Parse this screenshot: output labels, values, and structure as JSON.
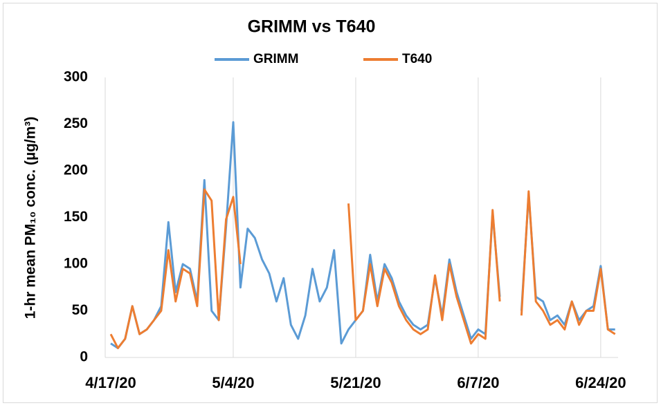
{
  "chart_data": {
    "type": "line",
    "title": "GRIMM vs T640",
    "y_label": "1-hr mean PM₁₀ conc. (µg/m³)",
    "x": [
      "4/17/20",
      "4/18/20",
      "4/19/20",
      "4/20/20",
      "4/21/20",
      "4/22/20",
      "4/23/20",
      "4/24/20",
      "4/25/20",
      "4/26/20",
      "4/27/20",
      "4/28/20",
      "4/29/20",
      "4/30/20",
      "5/1/20",
      "5/2/20",
      "5/3/20",
      "5/4/20",
      "5/5/20",
      "5/6/20",
      "5/7/20",
      "5/8/20",
      "5/9/20",
      "5/10/20",
      "5/11/20",
      "5/12/20",
      "5/13/20",
      "5/14/20",
      "5/15/20",
      "5/16/20",
      "5/17/20",
      "5/18/20",
      "5/19/20",
      "5/20/20",
      "5/21/20",
      "5/22/20",
      "5/23/20",
      "5/24/20",
      "5/25/20",
      "5/26/20",
      "5/27/20",
      "5/28/20",
      "5/29/20",
      "5/30/20",
      "5/31/20",
      "6/1/20",
      "6/2/20",
      "6/3/20",
      "6/4/20",
      "6/5/20",
      "6/6/20",
      "6/7/20",
      "6/8/20",
      "6/9/20",
      "6/10/20",
      "6/11/20",
      "6/12/20",
      "6/13/20",
      "6/14/20",
      "6/15/20",
      "6/16/20",
      "6/17/20",
      "6/18/20",
      "6/19/20",
      "6/20/20",
      "6/21/20",
      "6/22/20",
      "6/23/20",
      "6/24/20",
      "6/25/20",
      "6/26/20"
    ],
    "xticks": [
      "4/17/20",
      "5/4/20",
      "5/21/20",
      "6/7/20",
      "6/24/20"
    ],
    "series": [
      {
        "name": "GRIMM",
        "color": "#5b9bd5",
        "values": [
          15,
          10,
          20,
          55,
          25,
          30,
          40,
          55,
          145,
          70,
          100,
          95,
          60,
          190,
          50,
          40,
          140,
          252,
          75,
          138,
          128,
          105,
          90,
          60,
          85,
          35,
          20,
          45,
          95,
          60,
          75,
          115,
          15,
          30,
          40,
          50,
          110,
          60,
          100,
          85,
          60,
          45,
          35,
          30,
          35,
          85,
          45,
          105,
          70,
          45,
          20,
          30,
          25,
          155,
          65,
          null,
          null,
          50,
          175,
          65,
          60,
          40,
          45,
          35,
          60,
          40,
          50,
          55,
          98,
          30,
          30
        ]
      },
      {
        "name": "T640",
        "color": "#ed7d31",
        "values": [
          25,
          10,
          20,
          55,
          25,
          30,
          40,
          50,
          115,
          60,
          95,
          90,
          55,
          180,
          168,
          40,
          148,
          172,
          100,
          null,
          null,
          null,
          null,
          null,
          null,
          null,
          null,
          null,
          null,
          null,
          null,
          null,
          null,
          165,
          40,
          50,
          100,
          55,
          95,
          80,
          55,
          40,
          30,
          25,
          30,
          88,
          40,
          100,
          65,
          40,
          15,
          25,
          20,
          158,
          60,
          null,
          null,
          45,
          178,
          60,
          50,
          35,
          40,
          30,
          60,
          35,
          50,
          50,
          95,
          30,
          25
        ]
      }
    ],
    "ylim": [
      0,
      300
    ],
    "yticks": [
      0,
      50,
      100,
      150,
      200,
      250,
      300
    ],
    "grid": "x",
    "legend": "top"
  }
}
